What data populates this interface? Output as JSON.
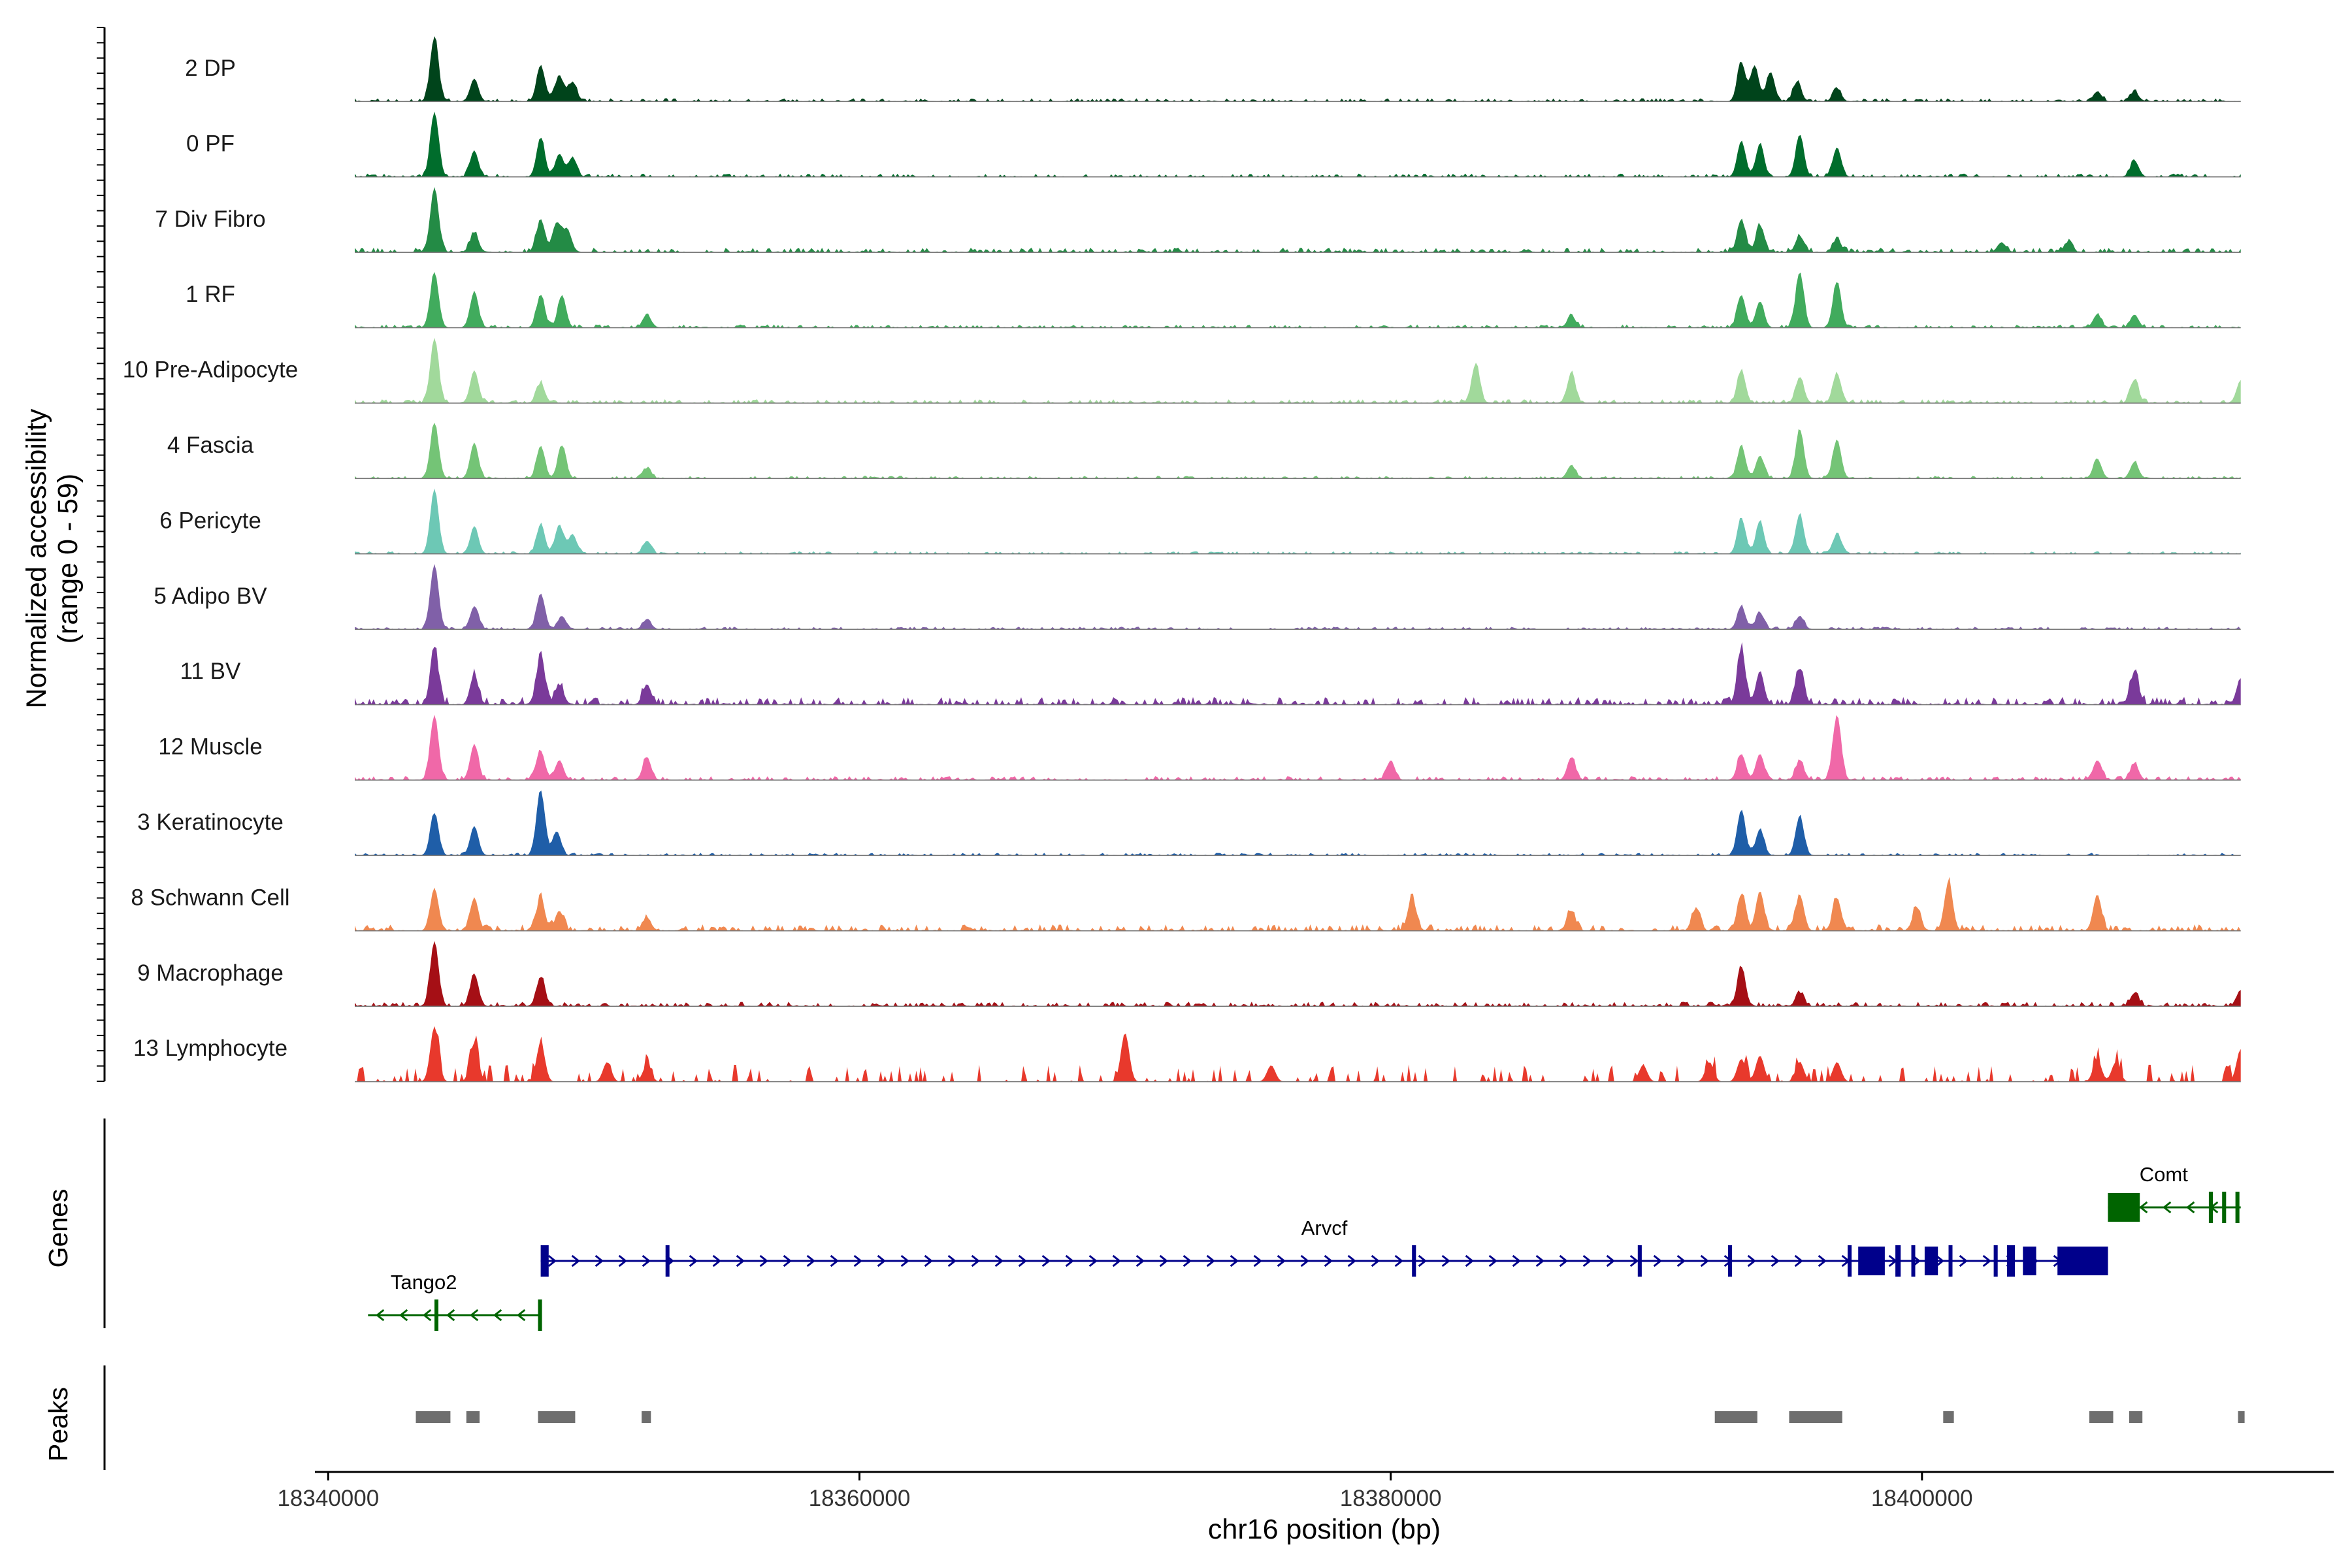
{
  "chart_data": {
    "type": "area",
    "title": "",
    "xlabel": "chr16 position (bp)",
    "ylabel_line1": "Normalized accessibility",
    "ylabel_line2": "(range 0 - 59)",
    "y_range": [
      0,
      59
    ],
    "xlim": [
      18339500,
      18415500
    ],
    "data_x_range": [
      18341000,
      18412000
    ],
    "x_ticks": [
      18340000,
      18360000,
      18380000,
      18400000
    ],
    "x_tick_labels": [
      "18340000",
      "18360000",
      "18380000",
      "18400000"
    ],
    "panel_labels": {
      "genes": "Genes",
      "peaks": "Peaks"
    },
    "tracks": [
      {
        "name": "2 DP",
        "color": "#00441b",
        "peaks": [
          [
            18344000,
            1.0
          ],
          [
            18345500,
            0.35
          ],
          [
            18348000,
            0.55
          ],
          [
            18348700,
            0.4
          ],
          [
            18349200,
            0.3
          ],
          [
            18393200,
            0.6
          ],
          [
            18393700,
            0.55
          ],
          [
            18394300,
            0.45
          ],
          [
            18395300,
            0.3
          ],
          [
            18396800,
            0.2
          ],
          [
            18406600,
            0.15
          ],
          [
            18408000,
            0.15
          ]
        ],
        "noise": 0.05,
        "sparse": false
      },
      {
        "name": "0 PF",
        "color": "#006d2c",
        "peaks": [
          [
            18344000,
            1.0
          ],
          [
            18345500,
            0.4
          ],
          [
            18348000,
            0.6
          ],
          [
            18348700,
            0.35
          ],
          [
            18349200,
            0.3
          ],
          [
            18393200,
            0.55
          ],
          [
            18393900,
            0.5
          ],
          [
            18395400,
            0.65
          ],
          [
            18396800,
            0.45
          ],
          [
            18408000,
            0.25
          ]
        ],
        "noise": 0.05,
        "sparse": false
      },
      {
        "name": "7 Div Fibro",
        "color": "#238b45",
        "peaks": [
          [
            18344000,
            1.0
          ],
          [
            18345500,
            0.3
          ],
          [
            18348000,
            0.5
          ],
          [
            18348600,
            0.45
          ],
          [
            18349000,
            0.35
          ],
          [
            18393200,
            0.5
          ],
          [
            18393900,
            0.4
          ],
          [
            18395400,
            0.25
          ],
          [
            18396800,
            0.2
          ],
          [
            18403000,
            0.15
          ],
          [
            18405500,
            0.15
          ]
        ],
        "noise": 0.07,
        "sparse": false
      },
      {
        "name": "1 RF",
        "color": "#41ab5d",
        "peaks": [
          [
            18344000,
            0.85
          ],
          [
            18345500,
            0.55
          ],
          [
            18348000,
            0.5
          ],
          [
            18348800,
            0.5
          ],
          [
            18352000,
            0.2
          ],
          [
            18386800,
            0.18
          ],
          [
            18393200,
            0.5
          ],
          [
            18393900,
            0.4
          ],
          [
            18395400,
            0.85
          ],
          [
            18396800,
            0.7
          ],
          [
            18406600,
            0.2
          ],
          [
            18408000,
            0.2
          ]
        ],
        "noise": 0.05,
        "sparse": false
      },
      {
        "name": "10 Pre-Adipocyte",
        "color": "#a1d99b",
        "peaks": [
          [
            18344000,
            1.0
          ],
          [
            18345500,
            0.5
          ],
          [
            18348000,
            0.3
          ],
          [
            18383200,
            0.6
          ],
          [
            18386800,
            0.45
          ],
          [
            18393200,
            0.5
          ],
          [
            18395400,
            0.4
          ],
          [
            18396800,
            0.45
          ],
          [
            18408000,
            0.35
          ],
          [
            18412000,
            0.35
          ]
        ],
        "noise": 0.06,
        "sparse": false
      },
      {
        "name": "4 Fascia",
        "color": "#74c476",
        "peaks": [
          [
            18344000,
            0.85
          ],
          [
            18345500,
            0.55
          ],
          [
            18348000,
            0.5
          ],
          [
            18348800,
            0.5
          ],
          [
            18352000,
            0.15
          ],
          [
            18386800,
            0.2
          ],
          [
            18393200,
            0.5
          ],
          [
            18393900,
            0.35
          ],
          [
            18395400,
            0.75
          ],
          [
            18396800,
            0.6
          ],
          [
            18406600,
            0.3
          ],
          [
            18408000,
            0.25
          ]
        ],
        "noise": 0.04,
        "sparse": false
      },
      {
        "name": "6 Pericyte",
        "color": "#6dc8b5",
        "peaks": [
          [
            18344000,
            1.0
          ],
          [
            18345500,
            0.4
          ],
          [
            18348000,
            0.45
          ],
          [
            18348700,
            0.45
          ],
          [
            18349200,
            0.3
          ],
          [
            18352000,
            0.2
          ],
          [
            18393200,
            0.55
          ],
          [
            18393900,
            0.5
          ],
          [
            18395400,
            0.6
          ],
          [
            18396800,
            0.3
          ]
        ],
        "noise": 0.04,
        "sparse": false
      },
      {
        "name": "5 Adipo BV",
        "color": "#8060a8",
        "peaks": [
          [
            18344000,
            1.0
          ],
          [
            18345500,
            0.35
          ],
          [
            18348000,
            0.55
          ],
          [
            18348800,
            0.2
          ],
          [
            18352000,
            0.15
          ],
          [
            18393200,
            0.35
          ],
          [
            18393900,
            0.25
          ],
          [
            18395400,
            0.2
          ]
        ],
        "noise": 0.04,
        "sparse": false
      },
      {
        "name": "11 BV",
        "color": "#7a3a9a",
        "peaks": [
          [
            18344000,
            0.85
          ],
          [
            18345500,
            0.45
          ],
          [
            18348000,
            0.75
          ],
          [
            18348700,
            0.3
          ],
          [
            18352000,
            0.3
          ],
          [
            18393200,
            0.85
          ],
          [
            18393900,
            0.5
          ],
          [
            18395400,
            0.55
          ],
          [
            18408000,
            0.5
          ],
          [
            18412000,
            0.4
          ]
        ],
        "noise": 0.12,
        "sparse": false
      },
      {
        "name": "12 Muscle",
        "color": "#f068a8",
        "peaks": [
          [
            18344000,
            1.0
          ],
          [
            18345500,
            0.55
          ],
          [
            18348000,
            0.45
          ],
          [
            18348700,
            0.3
          ],
          [
            18352000,
            0.35
          ],
          [
            18380000,
            0.3
          ],
          [
            18386800,
            0.35
          ],
          [
            18393200,
            0.4
          ],
          [
            18393900,
            0.4
          ],
          [
            18395400,
            0.3
          ],
          [
            18396800,
            1.0
          ],
          [
            18406600,
            0.3
          ],
          [
            18408000,
            0.25
          ]
        ],
        "noise": 0.06,
        "sparse": false
      },
      {
        "name": "3 Keratinocyte",
        "color": "#1f5ea8",
        "peaks": [
          [
            18344000,
            0.65
          ],
          [
            18345500,
            0.45
          ],
          [
            18348000,
            1.0
          ],
          [
            18348600,
            0.35
          ],
          [
            18393200,
            0.7
          ],
          [
            18393900,
            0.4
          ],
          [
            18395400,
            0.6
          ]
        ],
        "noise": 0.04,
        "sparse": false
      },
      {
        "name": "8 Schwann Cell",
        "color": "#f08850",
        "peaks": [
          [
            18344000,
            0.65
          ],
          [
            18345500,
            0.5
          ],
          [
            18348000,
            0.5
          ],
          [
            18348700,
            0.3
          ],
          [
            18352000,
            0.2
          ],
          [
            18380800,
            0.5
          ],
          [
            18386800,
            0.3
          ],
          [
            18391500,
            0.35
          ],
          [
            18393200,
            0.55
          ],
          [
            18393900,
            0.6
          ],
          [
            18395400,
            0.55
          ],
          [
            18396800,
            0.5
          ],
          [
            18399800,
            0.35
          ],
          [
            18401000,
            0.75
          ],
          [
            18406600,
            0.55
          ]
        ],
        "noise": 0.1,
        "sparse": false
      },
      {
        "name": "9 Macrophage",
        "color": "#a50f15",
        "peaks": [
          [
            18344000,
            1.0
          ],
          [
            18345500,
            0.5
          ],
          [
            18348000,
            0.45
          ],
          [
            18393200,
            0.6
          ],
          [
            18395400,
            0.2
          ],
          [
            18408000,
            0.2
          ],
          [
            18412000,
            0.25
          ]
        ],
        "noise": 0.07,
        "sparse": false
      },
      {
        "name": "13 Lymphocyte",
        "color": "#e8392c",
        "peaks": [
          [
            18344000,
            0.85
          ],
          [
            18345500,
            0.6
          ],
          [
            18348000,
            0.6
          ],
          [
            18350500,
            0.3
          ],
          [
            18352000,
            0.25
          ],
          [
            18370000,
            0.75
          ],
          [
            18375500,
            0.25
          ],
          [
            18389500,
            0.25
          ],
          [
            18392000,
            0.3
          ],
          [
            18393200,
            0.35
          ],
          [
            18393900,
            0.4
          ],
          [
            18395400,
            0.3
          ],
          [
            18396800,
            0.3
          ],
          [
            18406600,
            0.35
          ],
          [
            18407300,
            0.3
          ],
          [
            18412000,
            0.5
          ]
        ],
        "noise": 0.12,
        "sparse": true
      }
    ],
    "genes": [
      {
        "name": "Tango2",
        "color": "#006400",
        "strand": "-",
        "start": 18341500,
        "end": 18348000,
        "exons": [
          [
            18344000,
            18344100
          ],
          [
            18347900,
            18348050
          ]
        ]
      },
      {
        "name": "Arvcf",
        "color": "#00008b",
        "strand": "+",
        "start": 18348000,
        "end": 18407000,
        "exons": [
          [
            18348000,
            18348300
          ],
          [
            18352700,
            18352760
          ],
          [
            18380800,
            18380950
          ],
          [
            18389300,
            18389450
          ],
          [
            18392700,
            18392850
          ],
          [
            18397200,
            18397350
          ],
          [
            18397600,
            18398600
          ],
          [
            18399000,
            18399200
          ],
          [
            18399600,
            18399700
          ],
          [
            18400100,
            18400600
          ],
          [
            18401000,
            18401100
          ],
          [
            18402700,
            18402850
          ],
          [
            18403200,
            18403500
          ],
          [
            18403800,
            18404300
          ],
          [
            18405100,
            18407000
          ]
        ]
      },
      {
        "name": "Comt",
        "color": "#006400",
        "strand": "-",
        "start": 18407000,
        "end": 18412000,
        "exons": [
          [
            18407000,
            18408200
          ],
          [
            18410800,
            18410950
          ],
          [
            18411300,
            18411450
          ],
          [
            18411800,
            18411950
          ]
        ]
      }
    ],
    "peaks_track": [
      [
        18343300,
        18344600
      ],
      [
        18345200,
        18345700
      ],
      [
        18347900,
        18349300
      ],
      [
        18351800,
        18352150
      ],
      [
        18392200,
        18393800
      ],
      [
        18395000,
        18397000
      ],
      [
        18400800,
        18401200
      ],
      [
        18406300,
        18407200
      ],
      [
        18407800,
        18408300
      ],
      [
        18411900,
        18412100
      ]
    ]
  }
}
